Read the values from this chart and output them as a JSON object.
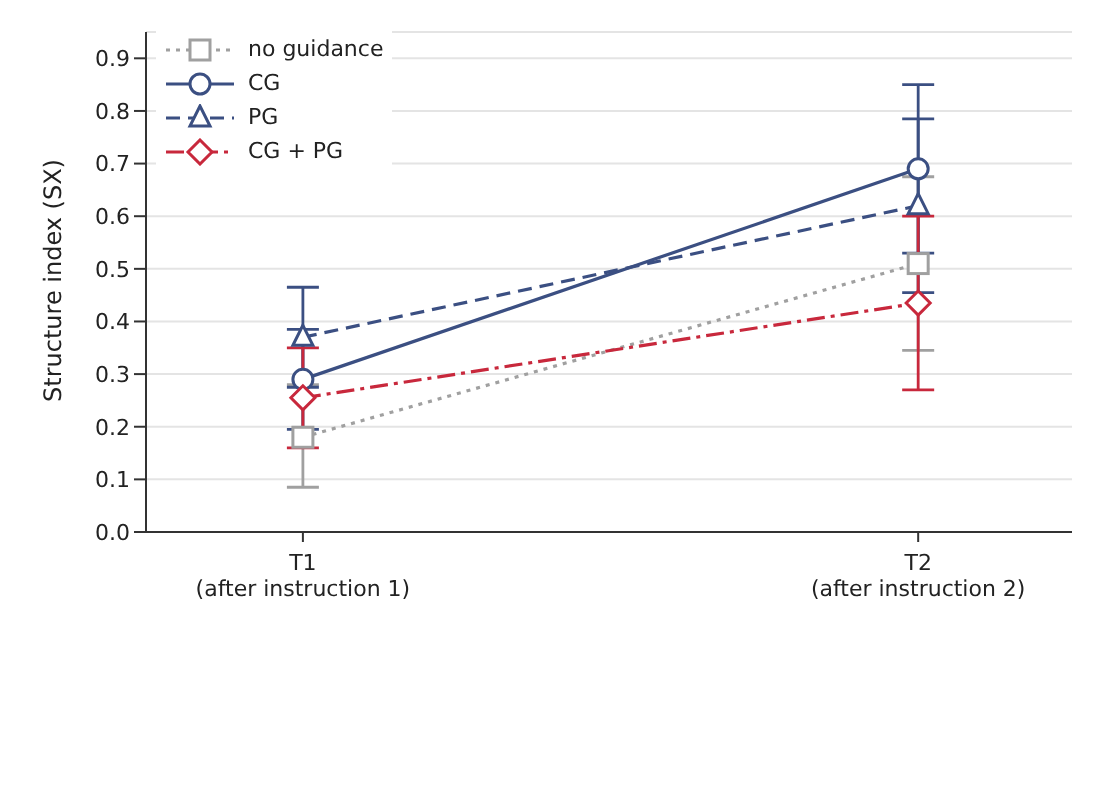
{
  "chart_data": {
    "type": "line",
    "ylabel": "Structure index (SX)",
    "categories": [
      "T1\n(after instruction 1)",
      "T2\n(after instruction 2)"
    ],
    "ylim": [
      0,
      0.95
    ],
    "yticks": [
      {
        "value": 0,
        "label": "0.0"
      },
      {
        "value": 0.1,
        "label": "0.1"
      },
      {
        "value": 0.2,
        "label": "0.2"
      },
      {
        "value": 0.3,
        "label": "0.3"
      },
      {
        "value": 0.4,
        "label": "0.4"
      },
      {
        "value": 0.5,
        "label": "0.5"
      },
      {
        "value": 0.6,
        "label": "0.6"
      },
      {
        "value": 0.7,
        "label": "0.7"
      },
      {
        "value": 0.8,
        "label": "0.8"
      },
      {
        "value": 0.9,
        "label": "0.9"
      }
    ],
    "grid": "y",
    "legend": "top left",
    "series": [
      {
        "name": "no guidance",
        "color": "#a0a0a0",
        "values": [
          0.18,
          0.51
        ],
        "errors": [
          [
            0.085,
            0.28
          ],
          [
            0.345,
            0.675
          ]
        ],
        "marker": "square",
        "line_style": "dotted"
      },
      {
        "name": "CG",
        "color": "#3b4f82",
        "values": [
          0.29,
          0.69
        ],
        "errors": [
          [
            0.195,
            0.385
          ],
          [
            0.53,
            0.85
          ]
        ],
        "marker": "circle",
        "line_style": "solid"
      },
      {
        "name": "PG",
        "color": "#3b4f82",
        "values": [
          0.37,
          0.62
        ],
        "errors": [
          [
            0.275,
            0.465
          ],
          [
            0.455,
            0.785
          ]
        ],
        "marker": "triangle",
        "line_style": "dashed"
      },
      {
        "name": "CG + PG",
        "color": "#c8283c",
        "values": [
          0.255,
          0.435
        ],
        "errors": [
          [
            0.16,
            0.35
          ],
          [
            0.27,
            0.6
          ]
        ],
        "marker": "diamond",
        "line_style": "dashdot"
      }
    ]
  }
}
